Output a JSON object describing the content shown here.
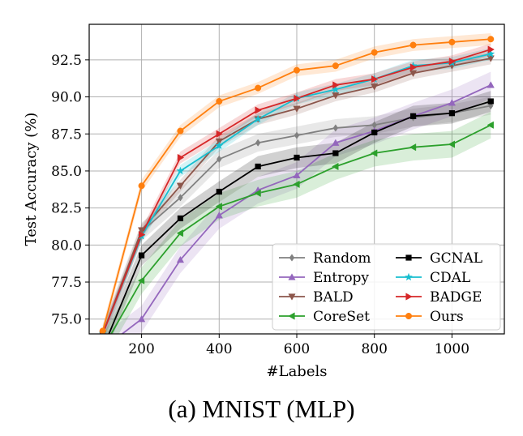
{
  "caption": "(a) MNIST (MLP)",
  "chart_data": {
    "type": "line",
    "title": "",
    "xlabel": "#Labels",
    "ylabel": "Test Accuracy (%)",
    "xlim": [
      65,
      1135
    ],
    "ylim": [
      74.0,
      94.9
    ],
    "xticks": [
      200,
      400,
      600,
      800,
      1000
    ],
    "yticks": [
      75.0,
      77.5,
      80.0,
      82.5,
      85.0,
      87.5,
      90.0,
      92.5
    ],
    "ytick_labels": [
      "75.0",
      "77.5",
      "80.0",
      "82.5",
      "85.0",
      "87.5",
      "90.0",
      "92.5"
    ],
    "grid": true,
    "legend_position": "lower-right",
    "x": [
      100,
      200,
      300,
      400,
      500,
      600,
      700,
      800,
      900,
      1000,
      1100
    ],
    "series": [
      {
        "name": "Random",
        "color": "#808080",
        "marker": "diamond",
        "values": [
          74.0,
          80.9,
          83.2,
          85.8,
          86.9,
          87.4,
          87.9,
          88.1,
          88.6,
          88.9,
          89.4
        ],
        "band": 0.6
      },
      {
        "name": "Entropy",
        "color": "#9467bd",
        "marker": "triangle-up",
        "values": [
          73.0,
          75.0,
          79.0,
          82.0,
          83.7,
          84.7,
          86.9,
          87.7,
          88.7,
          89.6,
          90.8
        ],
        "band": 0.9
      },
      {
        "name": "BALD",
        "color": "#8c564b",
        "marker": "triangle-down",
        "values": [
          74.0,
          81.0,
          84.0,
          87.0,
          88.5,
          89.2,
          90.1,
          90.7,
          91.6,
          92.1,
          92.6
        ],
        "band": 0.4
      },
      {
        "name": "CoreSet",
        "color": "#2ca02c",
        "marker": "triangle-left",
        "values": [
          73.0,
          77.6,
          80.8,
          82.6,
          83.5,
          84.1,
          85.3,
          86.2,
          86.6,
          86.8,
          88.1
        ],
        "band": 0.9
      },
      {
        "name": "GCNAL",
        "color": "#000000",
        "marker": "square",
        "values": [
          73.0,
          79.3,
          81.8,
          83.6,
          85.3,
          85.9,
          86.2,
          87.6,
          88.7,
          88.9,
          89.7
        ],
        "band": 0.7
      },
      {
        "name": "CDAL",
        "color": "#17becf",
        "marker": "star",
        "values": [
          74.0,
          80.6,
          85.0,
          86.7,
          88.5,
          89.9,
          90.5,
          91.2,
          92.1,
          92.3,
          92.9
        ],
        "band": 0.4
      },
      {
        "name": "BADGE",
        "color": "#d62728",
        "marker": "triangle-right",
        "values": [
          74.0,
          80.7,
          85.9,
          87.5,
          89.1,
          89.9,
          90.8,
          91.2,
          92.0,
          92.4,
          93.2
        ],
        "band": 0.4
      },
      {
        "name": "Ours",
        "color": "#ff7f0e",
        "marker": "circle",
        "values": [
          74.2,
          84.0,
          87.7,
          89.7,
          90.6,
          91.8,
          92.1,
          93.0,
          93.5,
          93.7,
          93.9
        ],
        "band": 0.4
      }
    ]
  }
}
